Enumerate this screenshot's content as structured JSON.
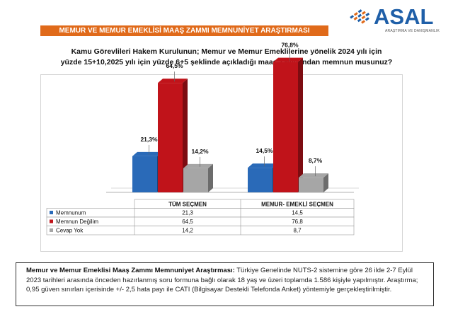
{
  "brand": {
    "name": "ASAL",
    "tagline": "ARAŞTIRMA VE DANIŞMANLIK",
    "colors": {
      "blue": "#1f5fa8",
      "orange": "#e06a1a"
    }
  },
  "banner_title": "MEMUR VE MEMUR EMEKLİSİ MAAŞ ZAMMI MEMNUNİYET ARAŞTIRMASI",
  "question_line1": "Kamu Görevlileri Hakem Kurulunun; Memur ve Memur Emeklilerine yönelik 2024 yılı için",
  "question_line2": "yüzde 15+10,2025 yılı için yüzde 6+5 şeklinde açıkladığı maaş zammından memnun musunuz?",
  "chart_data": {
    "type": "bar",
    "categories": [
      "TÜM SEÇMEN",
      "MEMUR- EMEKLİ SEÇMEN"
    ],
    "series": [
      {
        "name": "Memnunum",
        "color": "#2a6ab8",
        "values": [
          21.3,
          14.5
        ],
        "labels": [
          "21,3%",
          "14,5%"
        ],
        "table": [
          "21,3",
          "14,5"
        ]
      },
      {
        "name": "Memnun Değilim",
        "color": "#c0131a",
        "values": [
          64.5,
          76.8
        ],
        "labels": [
          "64,5%",
          "76,8%"
        ],
        "table": [
          "64,5",
          "76,8"
        ]
      },
      {
        "name": "Cevap Yok",
        "color": "#a6a6a6",
        "values": [
          14.2,
          8.7
        ],
        "labels": [
          "14,2%",
          "8,7%"
        ],
        "table": [
          "14,2",
          "8,7"
        ]
      }
    ],
    "ylim": [
      0,
      100
    ],
    "grid": false,
    "legend_position": "table-below"
  },
  "note": {
    "bold": "Memur ve Memur Emeklisi Maaş Zammı Memnuniyet Araştırması:",
    "text": " Türkiye Genelinde NUTS-2 sistemine göre 26 ilde 2-7 Eylül 2023 tarihleri arasında önceden hazırlanmış soru formuna bağlı olarak 18 yaş ve üzeri toplamda 1.586 kişiyle yapılmıştır. Araştırma; 0,95 güven sınırları içerisinde +/- 2,5 hata payı ile CATI (Bilgisayar Destekli Telefonda Anket) yöntemiyle gerçekleştirilmiştir."
  }
}
